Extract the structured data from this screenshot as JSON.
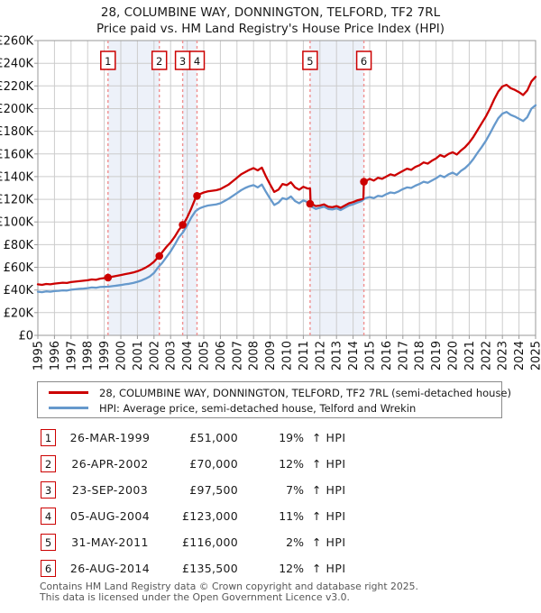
{
  "title": {
    "line1": "28, COLUMBINE WAY, DONNINGTON, TELFORD, TF2 7RL",
    "line2": "Price paid vs. HM Land Registry's House Price Index (HPI)"
  },
  "colors": {
    "property": "#cc0000",
    "hpi": "#6699cc",
    "band": "#edf1f9",
    "grid": "#cccccc",
    "axis": "#999999",
    "dash": "#f09090",
    "text": "#111111"
  },
  "legend": {
    "items": [
      {
        "label": "28, COLUMBINE WAY, DONNINGTON, TELFORD, TF2 7RL (semi-detached house)",
        "color": "#cc0000"
      },
      {
        "label": "HPI: Average price, semi-detached house, Telford and Wrekin",
        "color": "#6699cc"
      }
    ]
  },
  "table": {
    "rows": [
      {
        "n": "1",
        "date": "26-MAR-1999",
        "price": "£51,000",
        "pct": "19%",
        "hpi": "↑ HPI"
      },
      {
        "n": "2",
        "date": "26-APR-2002",
        "price": "£70,000",
        "pct": "12%",
        "hpi": "↑ HPI"
      },
      {
        "n": "3",
        "date": "23-SEP-2003",
        "price": "£97,500",
        "pct": "7%",
        "hpi": "↑ HPI"
      },
      {
        "n": "4",
        "date": "05-AUG-2004",
        "price": "£123,000",
        "pct": "11%",
        "hpi": "↑ HPI"
      },
      {
        "n": "5",
        "date": "31-MAY-2011",
        "price": "£116,000",
        "pct": "2%",
        "hpi": "↑ HPI"
      },
      {
        "n": "6",
        "date": "26-AUG-2014",
        "price": "£135,500",
        "pct": "12%",
        "hpi": "↑ HPI"
      }
    ]
  },
  "footer": {
    "line1": "Contains HM Land Registry data © Crown copyright and database right 2025.",
    "line2": "This data is licensed under the Open Government Licence v3.0."
  },
  "chart_data": {
    "type": "line",
    "title": "28, COLUMBINE WAY, DONNINGTON, TELFORD, TF2 7RL — Price paid vs. HPI",
    "unit": "GBP thousands",
    "x_range": [
      1995,
      2025
    ],
    "ylim_k": [
      0,
      260
    ],
    "grid": true,
    "legend_position": "below",
    "y_ticks": [
      {
        "v": 0,
        "label": "£0"
      },
      {
        "v": 20,
        "label": "£20K"
      },
      {
        "v": 40,
        "label": "£40K"
      },
      {
        "v": 60,
        "label": "£60K"
      },
      {
        "v": 80,
        "label": "£80K"
      },
      {
        "v": 100,
        "label": "£100K"
      },
      {
        "v": 120,
        "label": "£120K"
      },
      {
        "v": 140,
        "label": "£140K"
      },
      {
        "v": 160,
        "label": "£160K"
      },
      {
        "v": 180,
        "label": "£180K"
      },
      {
        "v": 200,
        "label": "£200K"
      },
      {
        "v": 220,
        "label": "£220K"
      },
      {
        "v": 240,
        "label": "£240K"
      },
      {
        "v": 260,
        "label": "£260K"
      }
    ],
    "x_ticks": [
      1995,
      1996,
      1997,
      1998,
      1999,
      2000,
      2001,
      2002,
      2003,
      2004,
      2005,
      2006,
      2007,
      2008,
      2009,
      2010,
      2011,
      2012,
      2013,
      2014,
      2015,
      2016,
      2017,
      2018,
      2019,
      2020,
      2021,
      2022,
      2023,
      2024,
      2025
    ],
    "bands": [
      [
        1999.23,
        2002.32
      ],
      [
        2003.73,
        2004.59
      ],
      [
        2011.41,
        2014.65
      ]
    ],
    "sales": [
      {
        "n": 1,
        "year": 1999.23,
        "price": 51000
      },
      {
        "n": 2,
        "year": 2002.32,
        "price": 70000
      },
      {
        "n": 3,
        "year": 2003.73,
        "price": 97500
      },
      {
        "n": 4,
        "year": 2004.59,
        "price": 123000
      },
      {
        "n": 5,
        "year": 2011.41,
        "price": 116000
      },
      {
        "n": 6,
        "year": 2014.65,
        "price": 135500
      }
    ],
    "series": [
      {
        "name": "28, COLUMBINE WAY, DONNINGTON, TELFORD, TF2 7RL (semi-detached house)",
        "key": "property-price-line",
        "color": "#cc0000",
        "start": 1995,
        "step": 0.25,
        "values": [
          45.0,
          44.5,
          45.3,
          45.0,
          45.6,
          46.0,
          46.4,
          46.2,
          47.0,
          47.4,
          47.8,
          48.2,
          48.6,
          49.3,
          49.0,
          50.0,
          50.5,
          51.0,
          51.8,
          52.5,
          53.2,
          54.0,
          54.6,
          55.4,
          56.5,
          58.0,
          59.8,
          62.0,
          65.0,
          69.0,
          73.5,
          78.0,
          82.0,
          87.0,
          93.0,
          97.5,
          104.0,
          112.0,
          121.0,
          124.5,
          126.0,
          127.0,
          127.5,
          128.0,
          129.0,
          131.0,
          133.0,
          136.0,
          139.0,
          142.0,
          144.0,
          146.0,
          147.5,
          145.5,
          148.0,
          140.0,
          133.0,
          126.5,
          128.5,
          133.5,
          132.5,
          135.0,
          130.5,
          128.5,
          131.0,
          129.5,
          116.0,
          114.0,
          114.5,
          115.5,
          113.5,
          113.0,
          114.0,
          112.5,
          114.5,
          116.5,
          117.5,
          119.0,
          120.0,
          136.0,
          138.0,
          136.5,
          139.0,
          138.0,
          140.0,
          142.0,
          141.0,
          143.0,
          145.0,
          147.0,
          146.0,
          148.5,
          150.0,
          152.5,
          151.5,
          154.0,
          156.0,
          159.0,
          157.5,
          160.0,
          161.5,
          159.5,
          163.0,
          166.0,
          170.0,
          175.0,
          181.0,
          187.0,
          193.0,
          200.0,
          208.0,
          215.0,
          219.5,
          221.0,
          218.0,
          216.5,
          214.5,
          212.0,
          216.0,
          224.0,
          228.0
        ],
        "extra": [
          [
            2011.41,
            129.5
          ],
          [
            2011.44,
            116.0
          ],
          [
            2014.62,
            120.5
          ],
          [
            2014.65,
            135.5
          ]
        ]
      },
      {
        "name": "HPI: Average price, semi-detached house, Telford and Wrekin",
        "key": "hpi-line",
        "color": "#6699cc",
        "start": 1995,
        "step": 0.25,
        "values": [
          38.5,
          38.1,
          38.8,
          38.5,
          39.0,
          39.3,
          39.7,
          39.5,
          40.2,
          40.6,
          41.0,
          41.3,
          41.7,
          42.2,
          42.0,
          42.6,
          42.8,
          42.9,
          43.4,
          43.9,
          44.4,
          45.0,
          45.5,
          46.2,
          47.2,
          48.4,
          50.0,
          52.0,
          55.0,
          60.0,
          64.0,
          69.0,
          74.0,
          80.0,
          86.5,
          91.0,
          97.0,
          104.0,
          109.5,
          112.0,
          113.5,
          114.5,
          115.0,
          115.5,
          116.5,
          118.5,
          120.5,
          123.0,
          125.5,
          128.0,
          130.0,
          131.5,
          132.5,
          130.5,
          133.0,
          126.5,
          120.5,
          115.0,
          117.0,
          121.0,
          120.0,
          122.5,
          118.5,
          116.5,
          119.0,
          117.5,
          113.5,
          111.5,
          112.5,
          113.5,
          111.5,
          111.0,
          112.0,
          110.5,
          112.5,
          114.5,
          115.5,
          117.0,
          118.5,
          121.0,
          122.0,
          121.0,
          123.0,
          122.5,
          124.5,
          126.0,
          125.5,
          127.0,
          129.0,
          130.5,
          130.0,
          132.0,
          133.5,
          135.5,
          134.5,
          136.5,
          138.5,
          141.0,
          139.5,
          142.0,
          143.5,
          141.5,
          145.0,
          147.5,
          151.0,
          155.5,
          161.0,
          166.0,
          171.5,
          178.0,
          185.0,
          191.5,
          195.5,
          197.0,
          194.5,
          193.0,
          191.0,
          189.0,
          192.5,
          200.0,
          203.0
        ],
        "extra": []
      }
    ]
  }
}
